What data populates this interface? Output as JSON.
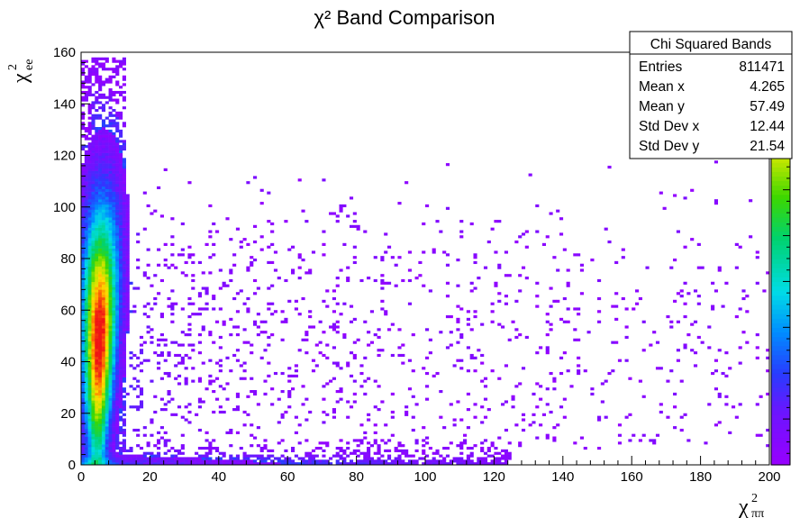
{
  "chart_data": {
    "type": "heatmap",
    "title": "χ² Band Comparison",
    "xlabel": {
      "base": "χ",
      "sup": "2",
      "sub": "ππ"
    },
    "ylabel": {
      "base": "χ",
      "sup": "2",
      "sub": "ee"
    },
    "xlim": [
      0,
      200
    ],
    "ylim": [
      0,
      160
    ],
    "x_ticks": [
      "0",
      "20",
      "40",
      "60",
      "80",
      "100",
      "120",
      "140",
      "160",
      "180",
      "200"
    ],
    "y_ticks": [
      "0",
      "20",
      "40",
      "60",
      "80",
      "100",
      "120",
      "140",
      "160"
    ],
    "grid": false,
    "colorbar": true,
    "colormap": "rainbow (violet → blue → cyan → green → yellow → orange → red)",
    "density_regions": [
      {
        "region": "vertical band",
        "x_range": [
          0,
          12
        ],
        "y_range": [
          0,
          155
        ],
        "peak_y": 50,
        "intensity": "high"
      },
      {
        "region": "horizontal band",
        "x_range": [
          0,
          120
        ],
        "y_range": [
          0,
          8
        ],
        "intensity": "medium"
      },
      {
        "region": "diffuse scatter",
        "x_range": [
          10,
          200
        ],
        "y_range": [
          10,
          120
        ],
        "intensity": "low"
      }
    ],
    "stats_box": {
      "title": "Chi Squared Bands",
      "entries": [
        {
          "label": "Entries",
          "value": "811471"
        },
        {
          "label": "Mean x",
          "value": "4.265"
        },
        {
          "label": "Mean y",
          "value": "57.49"
        },
        {
          "label": "Std Dev x",
          "value": "12.44"
        },
        {
          "label": "Std Dev y",
          "value": "21.54"
        }
      ]
    }
  }
}
